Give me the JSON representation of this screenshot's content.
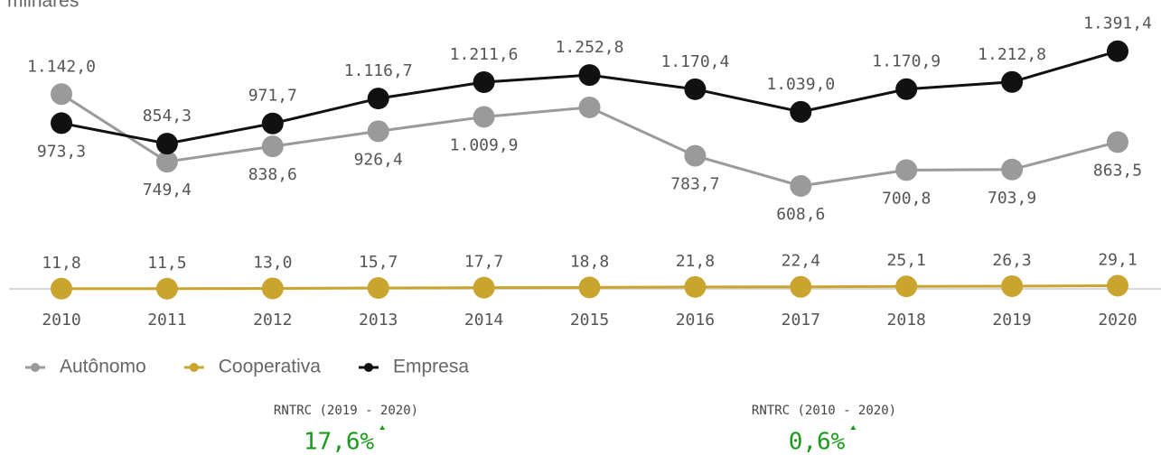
{
  "chart_data": {
    "type": "line",
    "subtitle": "milhares",
    "categories": [
      "2010",
      "2011",
      "2012",
      "2013",
      "2014",
      "2015",
      "2016",
      "2017",
      "2018",
      "2019",
      "2020"
    ],
    "ylim": [
      0,
      1500
    ],
    "series": [
      {
        "name": "Autônomo",
        "color": "#9a9a9a",
        "values": [
          1142.0,
          749.4,
          838.6,
          926.4,
          1009.9,
          1065,
          783.7,
          608.6,
          700.8,
          703.9,
          863.5
        ],
        "value_labels": [
          "1.142,0",
          "749,4",
          "838,6",
          "926,4",
          "1.009,9",
          null,
          "783,7",
          "608,6",
          "700,8",
          "703,9",
          "863,5"
        ]
      },
      {
        "name": "Cooperativa",
        "color": "#c9a42e",
        "values": [
          11.8,
          11.5,
          13.0,
          15.7,
          17.7,
          18.8,
          21.8,
          22.4,
          25.1,
          26.3,
          29.1
        ],
        "value_labels": [
          "11,8",
          "11,5",
          "13,0",
          "15,7",
          "17,7",
          "18,8",
          "21,8",
          "22,4",
          "25,1",
          "26,3",
          "29,1"
        ]
      },
      {
        "name": "Empresa",
        "color": "#111111",
        "values": [
          973.3,
          854.3,
          971.7,
          1116.7,
          1211.6,
          1252.8,
          1170.4,
          1039.0,
          1170.9,
          1212.8,
          1391.4
        ],
        "value_labels": [
          "973,3",
          "854,3",
          "971,7",
          "1.116,7",
          "1.211,6",
          "1.252,8",
          "1.170,4",
          "1.039,0",
          "1.170,9",
          "1.212,8",
          "1.391,4"
        ]
      }
    ],
    "kpis": [
      {
        "label": "RNTRC (2019 - 2020)",
        "value": "17,6%"
      },
      {
        "label": "RNTRC (2010 - 2020)",
        "value": "0,6%"
      }
    ]
  }
}
